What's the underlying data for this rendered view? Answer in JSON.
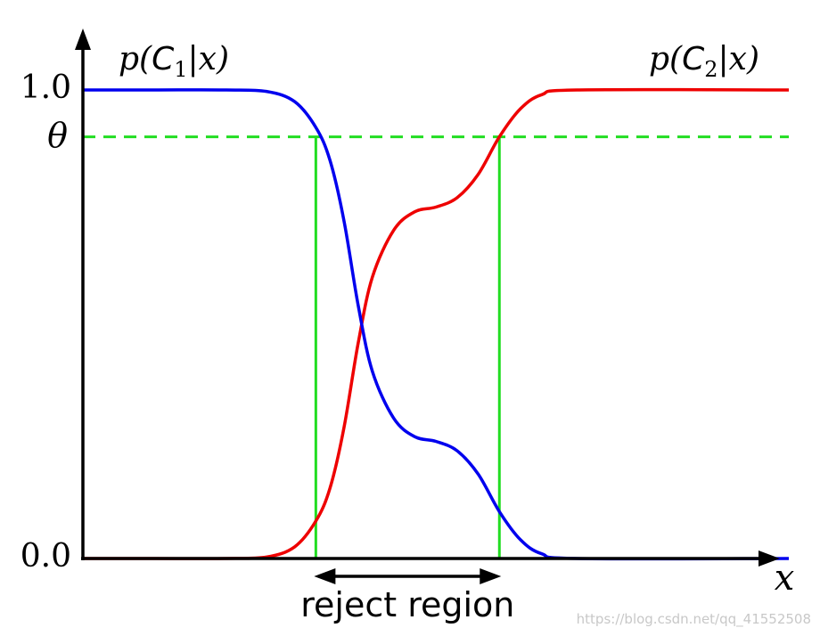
{
  "chart_data": {
    "type": "line",
    "xlabel": "x",
    "ylabel": "",
    "ylim": [
      0,
      1
    ],
    "y_tick_labels": [
      {
        "value": 1.0,
        "label": "1.0"
      },
      {
        "value": 0.0,
        "label": "0.0"
      }
    ],
    "theta": {
      "label": "θ",
      "value": 0.9
    },
    "series": [
      {
        "name": "p(C1|x)",
        "color": "#0000ee",
        "points": [
          [
            0.0,
            1.0
          ],
          [
            0.1,
            1.0
          ],
          [
            0.2,
            1.0
          ],
          [
            0.26,
            0.997
          ],
          [
            0.3,
            0.975
          ],
          [
            0.33,
            0.92
          ],
          [
            0.35,
            0.85
          ],
          [
            0.37,
            0.72
          ],
          [
            0.39,
            0.54
          ],
          [
            0.41,
            0.4
          ],
          [
            0.44,
            0.3
          ],
          [
            0.47,
            0.26
          ],
          [
            0.5,
            0.25
          ],
          [
            0.53,
            0.23
          ],
          [
            0.56,
            0.18
          ],
          [
            0.59,
            0.1
          ],
          [
            0.62,
            0.04
          ],
          [
            0.65,
            0.01
          ],
          [
            0.7,
            0.0
          ],
          [
            1.0,
            0.0
          ]
        ]
      },
      {
        "name": "p(C2|x)",
        "color": "#ee0000",
        "points": [
          [
            0.0,
            0.0
          ],
          [
            0.1,
            0.0
          ],
          [
            0.2,
            0.0
          ],
          [
            0.26,
            0.003
          ],
          [
            0.3,
            0.025
          ],
          [
            0.33,
            0.08
          ],
          [
            0.35,
            0.15
          ],
          [
            0.37,
            0.28
          ],
          [
            0.39,
            0.46
          ],
          [
            0.41,
            0.6
          ],
          [
            0.44,
            0.7
          ],
          [
            0.47,
            0.74
          ],
          [
            0.5,
            0.75
          ],
          [
            0.53,
            0.77
          ],
          [
            0.56,
            0.82
          ],
          [
            0.59,
            0.9
          ],
          [
            0.62,
            0.96
          ],
          [
            0.65,
            0.99
          ],
          [
            0.7,
            1.0
          ],
          [
            1.0,
            1.0
          ]
        ]
      }
    ],
    "reject_region": {
      "label": "reject region",
      "x_start": 0.33,
      "x_end": 0.59
    }
  },
  "curve_labels": {
    "c1": {
      "p": "p(",
      "C": "C",
      "sub": "1",
      "rest": "|x)"
    },
    "c2": {
      "p": "p(",
      "C": "C",
      "sub": "2",
      "rest": "|x)"
    }
  },
  "watermark": "https://blog.csdn.net/qq_41552508"
}
